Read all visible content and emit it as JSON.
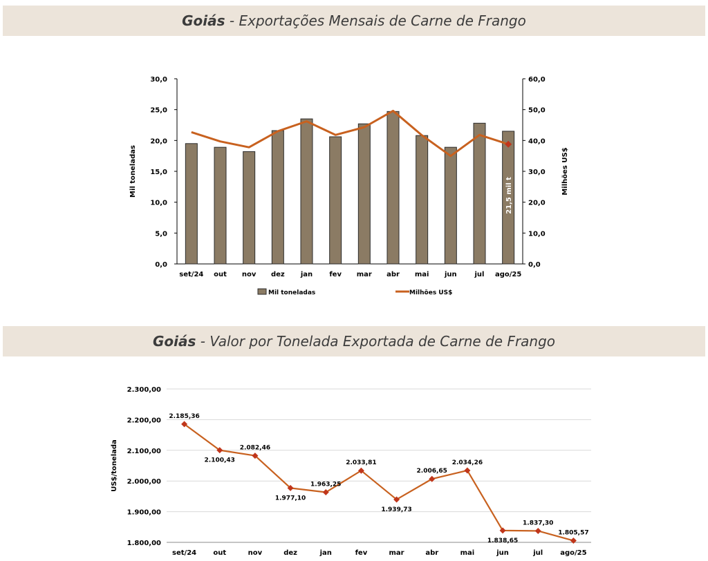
{
  "titles": {
    "chart1_region": "Goiás",
    "chart1_rest": "- Exportações Mensais de Carne de Frango",
    "chart2_region": "Goiás",
    "chart2_rest": "- Valor por Tonelada Exportada de Carne de Frango"
  },
  "colors": {
    "bar": "#8b7b64",
    "line": "#c8611f",
    "marker": "#c0361b",
    "banner": "#ece4da"
  },
  "chart_data": [
    {
      "type": "bar+line",
      "title": "Goiás - Exportações Mensais de Carne de Frango",
      "categories": [
        "set/24",
        "out",
        "nov",
        "dez",
        "jan",
        "fev",
        "mar",
        "abr",
        "mai",
        "jun",
        "jul",
        "ago/25"
      ],
      "series": [
        {
          "name": "Mil toneladas",
          "axis": "left",
          "type": "bar",
          "values": [
            19.5,
            18.9,
            18.2,
            21.6,
            23.5,
            20.6,
            22.7,
            24.7,
            20.8,
            18.9,
            22.8,
            21.5
          ]
        },
        {
          "name": "Milhões US$",
          "axis": "right",
          "type": "line",
          "values": [
            42.7,
            39.7,
            37.8,
            43.0,
            46.2,
            41.8,
            44.3,
            49.6,
            41.7,
            35.0,
            41.8,
            38.8
          ]
        }
      ],
      "ylabel": "Mil toneladas",
      "y2label": "Milhões US$",
      "ylim": [
        0,
        30
      ],
      "y2lim": [
        0,
        60
      ],
      "yticks": [
        "0,0",
        "5,0",
        "10,0",
        "15,0",
        "20,0",
        "25,0",
        "30,0"
      ],
      "y2ticks": [
        "0,0",
        "10,0",
        "20,0",
        "30,0",
        "40,0",
        "50,0",
        "60,0"
      ],
      "annotation": "21,5 mil t",
      "legend": [
        "Mil toneladas",
        "Milhões US$"
      ],
      "legend_position": "bottom"
    },
    {
      "type": "line",
      "title": "Goiás - Valor por Tonelada Exportada de Carne de Frango",
      "categories": [
        "set/24",
        "out",
        "nov",
        "dez",
        "jan",
        "fev",
        "mar",
        "abr",
        "mai",
        "jun",
        "jul",
        "ago/25"
      ],
      "values": [
        2185.36,
        2100.43,
        2082.46,
        1977.1,
        1963.25,
        2033.81,
        1939.73,
        2006.65,
        2034.26,
        1838.65,
        1837.3,
        1805.57
      ],
      "labels": [
        "2.185,36",
        "2.100,43",
        "2.082,46",
        "1.977,10",
        "1.963,25",
        "2.033,81",
        "1.939,73",
        "2.006,65",
        "2.034,26",
        "1.838,65",
        "1.837,30",
        "1.805,57"
      ],
      "ylabel": "US$/tonelada",
      "ylim": [
        1800,
        2300
      ],
      "yticks": [
        "1.800,00",
        "1.900,00",
        "2.000,00",
        "2.100,00",
        "2.200,00",
        "2.300,00"
      ],
      "grid": true
    }
  ]
}
